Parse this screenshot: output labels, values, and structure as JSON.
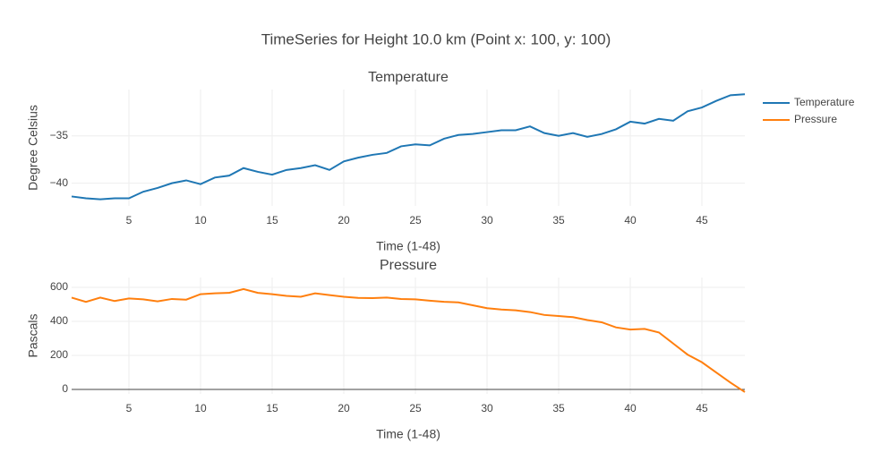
{
  "title": "TimeSeries for Height 10.0 km (Point x: 100, y: 100)",
  "chart_data": [
    {
      "type": "line",
      "title": "Temperature",
      "x_label": "Time (1-48)",
      "y_label": "Degree Celsius",
      "x": [
        1,
        2,
        3,
        4,
        5,
        6,
        7,
        8,
        9,
        10,
        11,
        12,
        13,
        14,
        15,
        16,
        17,
        18,
        19,
        20,
        21,
        22,
        23,
        24,
        25,
        26,
        27,
        28,
        29,
        30,
        31,
        32,
        33,
        34,
        35,
        36,
        37,
        38,
        39,
        40,
        41,
        42,
        43,
        44,
        45,
        46,
        47,
        48
      ],
      "series": [
        {
          "name": "Temperature",
          "color": "#1f77b4",
          "values": [
            -41.4,
            -41.6,
            -41.7,
            -41.6,
            -41.6,
            -40.9,
            -40.5,
            -40.0,
            -39.7,
            -40.1,
            -39.4,
            -39.2,
            -38.4,
            -38.8,
            -39.1,
            -38.6,
            -38.4,
            -38.1,
            -38.6,
            -37.7,
            -37.3,
            -37.0,
            -36.8,
            -36.1,
            -35.9,
            -36.0,
            -35.3,
            -34.9,
            -34.8,
            -34.6,
            -34.4,
            -34.4,
            -34.0,
            -34.7,
            -35.0,
            -34.7,
            -35.1,
            -34.8,
            -34.3,
            -33.5,
            -33.7,
            -33.2,
            -33.4,
            -32.4,
            -32.0,
            -31.3,
            -30.7,
            -30.6
          ]
        }
      ],
      "xlim": [
        1,
        48
      ],
      "xticks": [
        5,
        10,
        15,
        20,
        25,
        30,
        35,
        40,
        45
      ],
      "ylim": [
        -42.4,
        -30.1
      ],
      "yticks": [
        {
          "value": -40,
          "label": "−40"
        },
        {
          "value": -35,
          "label": "−35"
        }
      ],
      "grid": true
    },
    {
      "type": "line",
      "title": "Pressure",
      "x_label": "Time (1-48)",
      "y_label": "Pascals",
      "x": [
        1,
        2,
        3,
        4,
        5,
        6,
        7,
        8,
        9,
        10,
        11,
        12,
        13,
        14,
        15,
        16,
        17,
        18,
        19,
        20,
        21,
        22,
        23,
        24,
        25,
        26,
        27,
        28,
        29,
        30,
        31,
        32,
        33,
        34,
        35,
        36,
        37,
        38,
        39,
        40,
        41,
        42,
        43,
        44,
        45,
        46,
        47,
        48
      ],
      "series": [
        {
          "name": "Pressure",
          "color": "#ff7f0e",
          "values": [
            540,
            515,
            540,
            520,
            535,
            530,
            518,
            532,
            528,
            560,
            565,
            568,
            590,
            568,
            560,
            550,
            545,
            565,
            555,
            545,
            538,
            537,
            540,
            532,
            530,
            522,
            515,
            512,
            495,
            478,
            470,
            465,
            455,
            438,
            432,
            425,
            408,
            395,
            365,
            352,
            356,
            335,
            270,
            205,
            160,
            100,
            40,
            -15
          ]
        }
      ],
      "xlim": [
        1,
        48
      ],
      "xticks": [
        5,
        10,
        15,
        20,
        25,
        30,
        35,
        40,
        45
      ],
      "ylim": [
        -26,
        658
      ],
      "yticks": [
        0,
        200,
        400,
        600
      ],
      "grid": true,
      "zero_line": true
    }
  ]
}
